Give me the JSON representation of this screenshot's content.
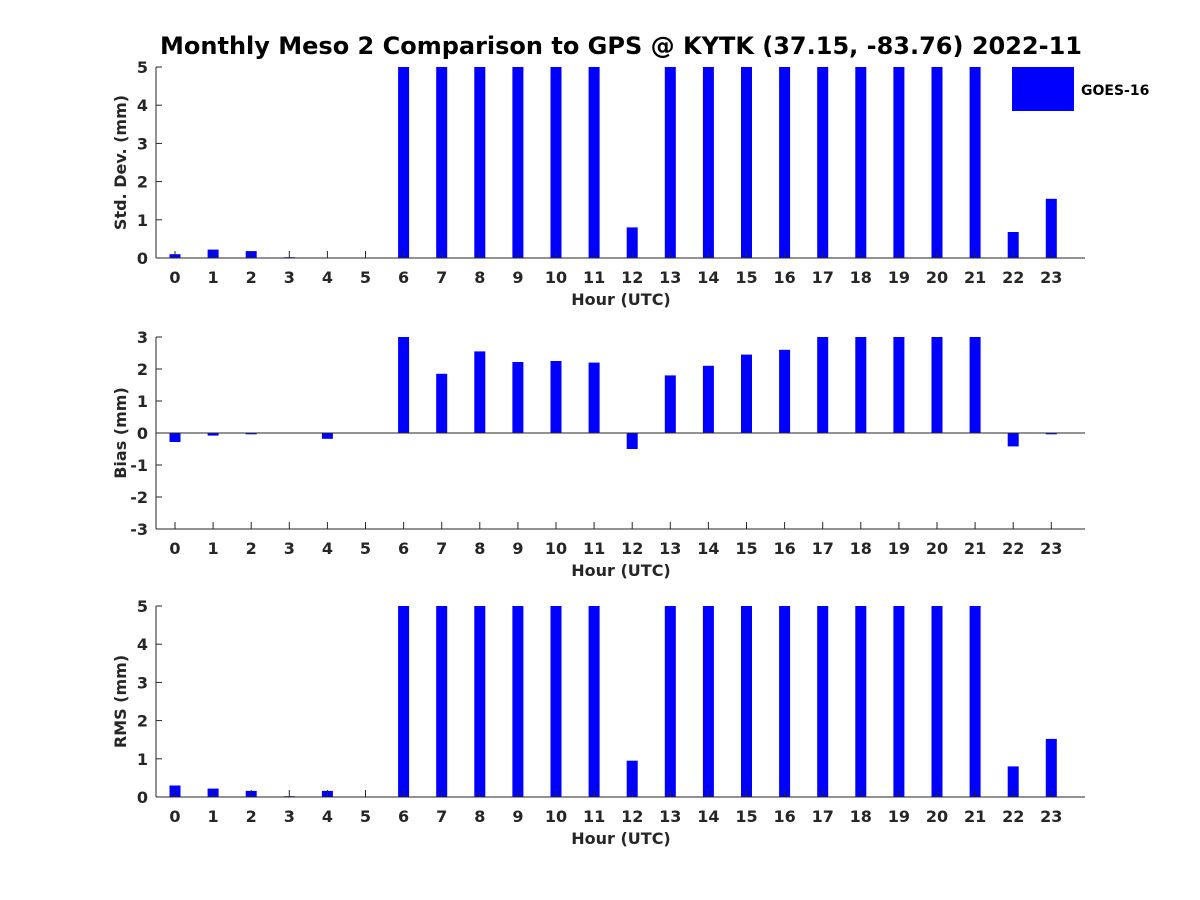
{
  "colors": {
    "bar": "#0000ff",
    "axis": "#262626",
    "background": "#ffffff"
  },
  "chart_data": {
    "title": "Monthly Meso 2 Comparison to GPS @ KYTK (37.15, -83.76) 2022-11",
    "legend": {
      "label": "GOES-16",
      "placement": "top-right"
    },
    "panels": [
      {
        "type": "bar",
        "ylabel": "Std. Dev. (mm)",
        "xlabel": "Hour (UTC)",
        "ylim": [
          0,
          5
        ],
        "yticks": [
          "0",
          "1",
          "2",
          "3",
          "4",
          "5"
        ],
        "series": [
          {
            "name": "GOES-16",
            "values": [
              0.1,
              0.22,
              0.18,
              0.02,
              0,
              0,
              5,
              5,
              5,
              5,
              5,
              5,
              0.8,
              5,
              5,
              5,
              5,
              5,
              5,
              5,
              5,
              5,
              0.68,
              1.55
            ]
          }
        ]
      },
      {
        "type": "bar",
        "ylabel": "Bias (mm)",
        "xlabel": "Hour (UTC)",
        "ylim": [
          -3,
          3
        ],
        "yticks": [
          "-3",
          "-2",
          "-1",
          "0",
          "1",
          "2",
          "3"
        ],
        "series": [
          {
            "name": "GOES-16",
            "values": [
              -0.28,
              -0.08,
              -0.04,
              0,
              -0.18,
              0,
              3,
              1.85,
              2.55,
              2.22,
              2.25,
              2.2,
              -0.5,
              1.8,
              2.1,
              2.45,
              2.6,
              3,
              3,
              3,
              3,
              3,
              -0.42,
              -0.04
            ]
          }
        ]
      },
      {
        "type": "bar",
        "ylabel": "RMS (mm)",
        "xlabel": "Hour (UTC)",
        "ylim": [
          0,
          5
        ],
        "yticks": [
          "0",
          "1",
          "2",
          "3",
          "4",
          "5"
        ],
        "series": [
          {
            "name": "GOES-16",
            "values": [
              0.3,
              0.22,
              0.16,
              0.02,
              0.16,
              0,
              5,
              5,
              5,
              5,
              5,
              5,
              0.95,
              5,
              5,
              5,
              5,
              5,
              5,
              5,
              5,
              5,
              0.8,
              1.52
            ]
          }
        ]
      }
    ],
    "categories": [
      "0",
      "1",
      "2",
      "3",
      "4",
      "5",
      "6",
      "7",
      "8",
      "9",
      "10",
      "11",
      "12",
      "13",
      "14",
      "15",
      "16",
      "17",
      "18",
      "19",
      "20",
      "21",
      "22",
      "23"
    ]
  }
}
